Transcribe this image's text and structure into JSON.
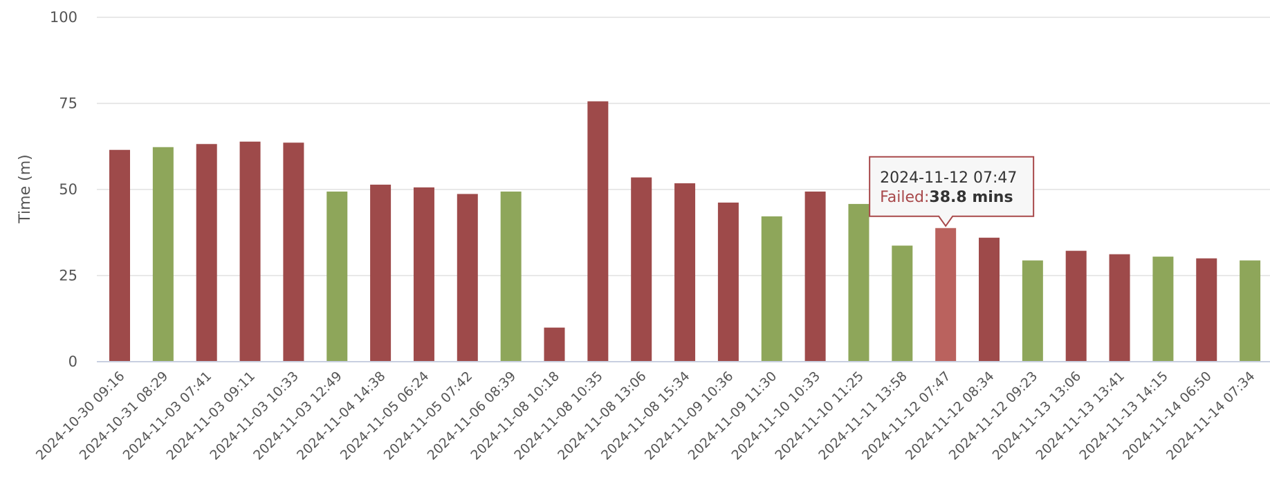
{
  "chart_data": {
    "type": "bar",
    "title": "",
    "ylabel": "Time (m)",
    "ylim": [
      0,
      100
    ],
    "yticks": [
      0,
      25,
      50,
      75,
      100
    ],
    "grid": true,
    "categories": [
      "2024-10-30 09:16",
      "2024-10-31 08:29",
      "2024-11-03 07:41",
      "2024-11-03 09:11",
      "2024-11-03 10:33",
      "2024-11-03 12:49",
      "2024-11-04 14:38",
      "2024-11-05 06:24",
      "2024-11-05 07:42",
      "2024-11-06 08:39",
      "2024-11-08 10:18",
      "2024-11-08 10:35",
      "2024-11-08 13:06",
      "2024-11-08 15:34",
      "2024-11-09 10:36",
      "2024-11-09 11:30",
      "2024-11-10 10:33",
      "2024-11-10 11:25",
      "2024-11-11 13:58",
      "2024-11-12 07:47",
      "2024-11-12 08:34",
      "2024-11-12 09:23",
      "2024-11-13 13:06",
      "2024-11-13 13:41",
      "2024-11-13 14:15",
      "2024-11-14 06:50",
      "2024-11-14 07:34"
    ],
    "values": [
      61.5,
      62.3,
      63.2,
      63.9,
      63.6,
      49.4,
      51.4,
      50.6,
      48.7,
      49.4,
      9.9,
      75.6,
      53.5,
      51.8,
      46.2,
      42.2,
      49.4,
      45.8,
      33.7,
      38.8,
      36.0,
      29.4,
      32.2,
      31.2,
      30.5,
      30.0,
      29.4
    ],
    "status": [
      "Failed",
      "Passed",
      "Failed",
      "Failed",
      "Failed",
      "Passed",
      "Failed",
      "Failed",
      "Failed",
      "Passed",
      "Failed",
      "Failed",
      "Failed",
      "Failed",
      "Failed",
      "Passed",
      "Failed",
      "Passed",
      "Passed",
      "Failed",
      "Failed",
      "Passed",
      "Failed",
      "Failed",
      "Passed",
      "Failed",
      "Passed"
    ],
    "colors": {
      "Failed": "#9e4a4a",
      "Passed": "#8ea65a",
      "highlight": "#ba625e"
    },
    "highlight_index": 19,
    "tooltip": {
      "date": "2024-11-12 07:47",
      "status_label": "Failed:",
      "value_text": "38.8 mins",
      "label_color": "#a8484a"
    }
  }
}
